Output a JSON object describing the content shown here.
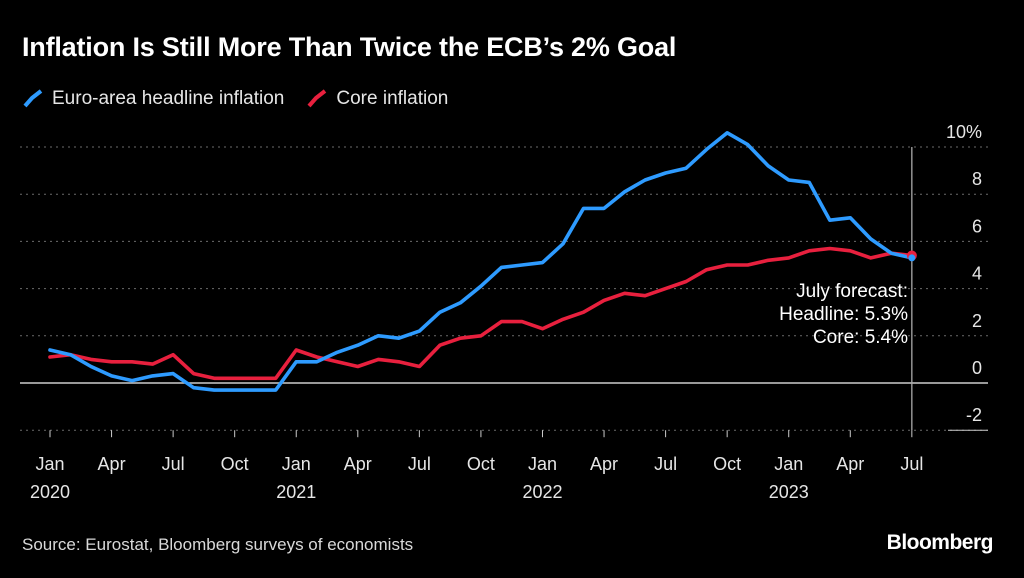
{
  "header": {
    "title": "Inflation Is Still More Than Twice the ECB’s 2% Goal"
  },
  "legend": {
    "headline_label": "Euro-area headline inflation",
    "core_label": "Core inflation"
  },
  "annotation": {
    "line1": "July forecast:",
    "line2": "Headline: 5.3%",
    "line3": "Core: 5.4%"
  },
  "footer": {
    "source": "Source: Eurostat, Bloomberg surveys of economists",
    "brand": "Bloomberg"
  },
  "colors": {
    "headline": "#2E9BFF",
    "core": "#E8203E",
    "grid": "#6b6b6b",
    "axis": "#cccccc"
  },
  "chart_data": {
    "type": "line",
    "title": "Inflation Is Still More Than Twice the ECB’s 2% Goal",
    "xlabel": "",
    "ylabel": "",
    "ylim": [
      -2,
      10
    ],
    "yticks": [
      -2,
      0,
      2,
      4,
      6,
      8,
      10
    ],
    "ytick_labels": [
      "-2",
      "0",
      "2",
      "4",
      "6",
      "8",
      "10%"
    ],
    "xtick_labels": [
      {
        "index": 0,
        "month": "Jan",
        "year": "2020"
      },
      {
        "index": 3,
        "month": "Apr",
        "year": ""
      },
      {
        "index": 6,
        "month": "Jul",
        "year": ""
      },
      {
        "index": 9,
        "month": "Oct",
        "year": ""
      },
      {
        "index": 12,
        "month": "Jan",
        "year": "2021"
      },
      {
        "index": 15,
        "month": "Apr",
        "year": ""
      },
      {
        "index": 18,
        "month": "Jul",
        "year": ""
      },
      {
        "index": 21,
        "month": "Oct",
        "year": ""
      },
      {
        "index": 24,
        "month": "Jan",
        "year": "2022"
      },
      {
        "index": 27,
        "month": "Apr",
        "year": ""
      },
      {
        "index": 30,
        "month": "Jul",
        "year": ""
      },
      {
        "index": 33,
        "month": "Oct",
        "year": ""
      },
      {
        "index": 36,
        "month": "Jan",
        "year": "2023"
      },
      {
        "index": 39,
        "month": "Apr",
        "year": ""
      },
      {
        "index": 42,
        "month": "Jul",
        "year": ""
      }
    ],
    "x": [
      "2020-01",
      "2020-02",
      "2020-03",
      "2020-04",
      "2020-05",
      "2020-06",
      "2020-07",
      "2020-08",
      "2020-09",
      "2020-10",
      "2020-11",
      "2020-12",
      "2021-01",
      "2021-02",
      "2021-03",
      "2021-04",
      "2021-05",
      "2021-06",
      "2021-07",
      "2021-08",
      "2021-09",
      "2021-10",
      "2021-11",
      "2021-12",
      "2022-01",
      "2022-02",
      "2022-03",
      "2022-04",
      "2022-05",
      "2022-06",
      "2022-07",
      "2022-08",
      "2022-09",
      "2022-10",
      "2022-11",
      "2022-12",
      "2023-01",
      "2023-02",
      "2023-03",
      "2023-04",
      "2023-05",
      "2023-06",
      "2023-07"
    ],
    "series": [
      {
        "name": "Euro-area headline inflation",
        "values": [
          1.4,
          1.2,
          0.7,
          0.3,
          0.1,
          0.3,
          0.4,
          -0.2,
          -0.3,
          -0.3,
          -0.3,
          -0.3,
          0.9,
          0.9,
          1.3,
          1.6,
          2.0,
          1.9,
          2.2,
          3.0,
          3.4,
          4.1,
          4.9,
          5.0,
          5.1,
          5.9,
          7.4,
          7.4,
          8.1,
          8.6,
          8.9,
          9.1,
          9.9,
          10.6,
          10.1,
          9.2,
          8.6,
          8.5,
          6.9,
          7.0,
          6.1,
          5.5,
          5.3
        ],
        "color": "#2E9BFF"
      },
      {
        "name": "Core inflation",
        "values": [
          1.1,
          1.2,
          1.0,
          0.9,
          0.9,
          0.8,
          1.2,
          0.4,
          0.2,
          0.2,
          0.2,
          0.2,
          1.4,
          1.1,
          0.9,
          0.7,
          1.0,
          0.9,
          0.7,
          1.6,
          1.9,
          2.0,
          2.6,
          2.6,
          2.3,
          2.7,
          3.0,
          3.5,
          3.8,
          3.7,
          4.0,
          4.3,
          4.8,
          5.0,
          5.0,
          5.2,
          5.3,
          5.6,
          5.7,
          5.6,
          5.3,
          5.5,
          5.4
        ],
        "color": "#E8203E"
      }
    ],
    "forecast": {
      "label": "July forecast",
      "index": 42,
      "headline": 5.3,
      "core": 5.4
    },
    "grid": true,
    "legend_position": "top-left"
  }
}
